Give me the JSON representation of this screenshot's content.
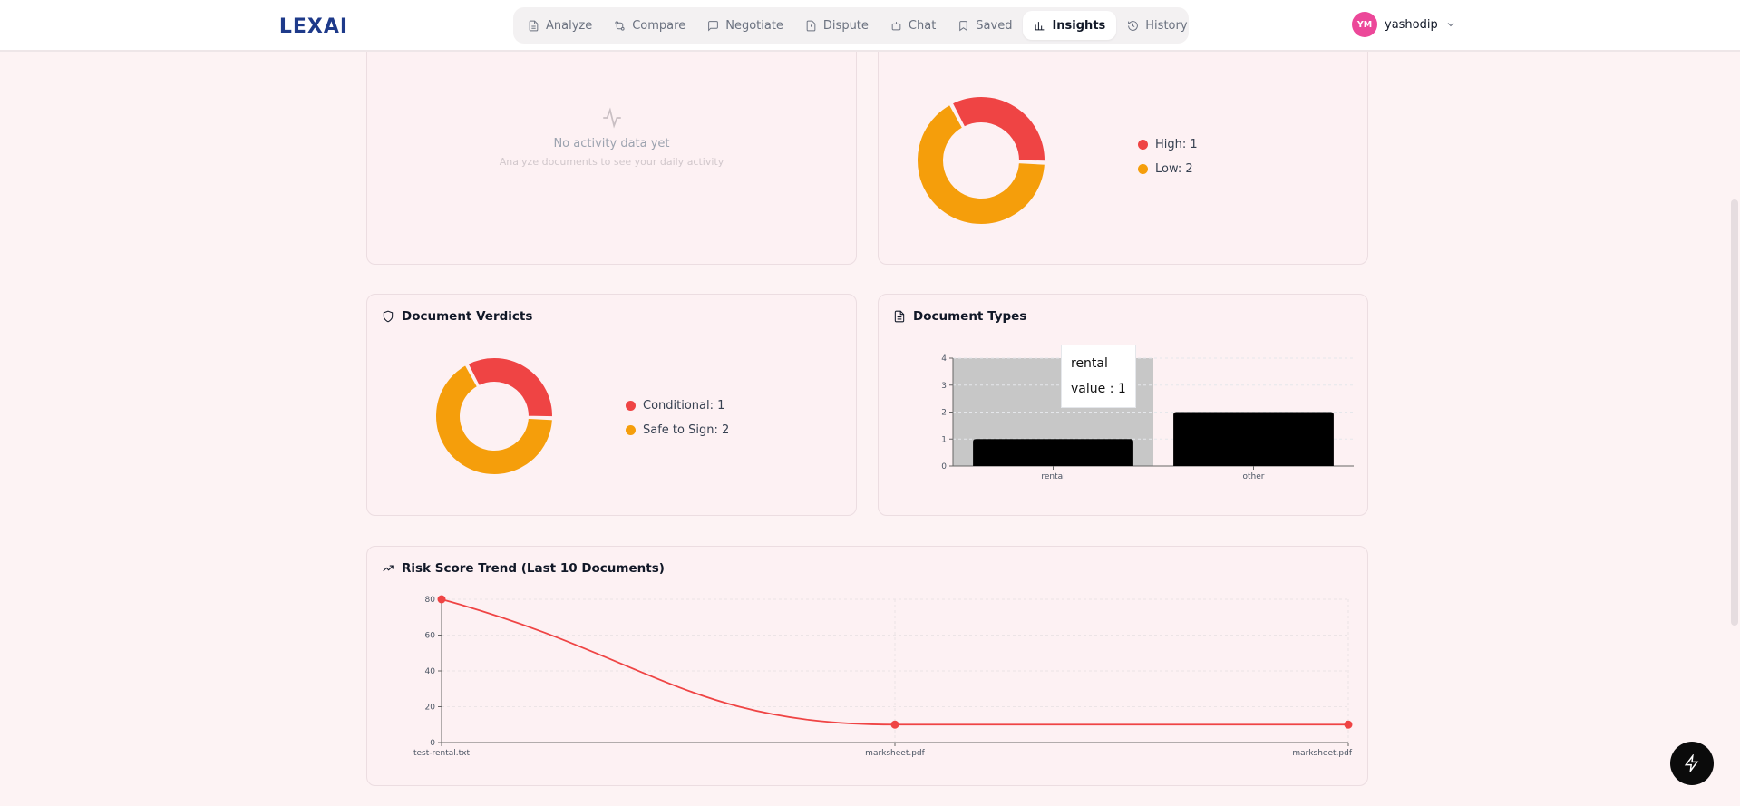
{
  "app": {
    "logo_text": "LEXAI"
  },
  "nav": {
    "items": [
      {
        "label": "Analyze",
        "icon": "file-text-icon"
      },
      {
        "label": "Compare",
        "icon": "git-compare-icon"
      },
      {
        "label": "Negotiate",
        "icon": "message-square-icon"
      },
      {
        "label": "Dispute",
        "icon": "file-warning-icon"
      },
      {
        "label": "Chat",
        "icon": "bot-icon"
      },
      {
        "label": "Saved",
        "icon": "bookmark-icon"
      },
      {
        "label": "Insights",
        "icon": "bar-chart-icon",
        "active": true
      },
      {
        "label": "History",
        "icon": "history-icon"
      }
    ]
  },
  "user": {
    "initials": "YM",
    "name": "yashodip",
    "avatar_color": "#ec4899"
  },
  "activity_card": {
    "empty_message": "No activity data yet",
    "empty_sub": "Analyze documents to see your daily activity"
  },
  "risk_card": {
    "legend": [
      {
        "label": "High: 1",
        "color": "#ef4444"
      },
      {
        "label": "Low: 2",
        "color": "#f59e0b"
      }
    ]
  },
  "verdicts_card": {
    "title": "Document Verdicts",
    "legend": [
      {
        "label": "Conditional: 1",
        "color": "#ef4444"
      },
      {
        "label": "Safe to Sign: 2",
        "color": "#f59e0b"
      }
    ]
  },
  "types_card": {
    "title": "Document Types",
    "tooltip": {
      "name": "rental",
      "value_text": "value : 1"
    }
  },
  "trend_card": {
    "title": "Risk Score Trend (Last 10 Documents)"
  },
  "chart_data": [
    {
      "type": "pie",
      "variant": "donut",
      "labels": [
        "High",
        "Low"
      ],
      "values": [
        1,
        2
      ],
      "colors": [
        "#ef4444",
        "#f59e0b"
      ]
    },
    {
      "type": "pie",
      "variant": "donut",
      "title": "Document Verdicts",
      "labels": [
        "Conditional",
        "Safe to Sign"
      ],
      "values": [
        1,
        2
      ],
      "colors": [
        "#ef4444",
        "#f59e0b"
      ]
    },
    {
      "type": "bar",
      "title": "Document Types",
      "categories": [
        "rental",
        "other"
      ],
      "values": [
        1,
        2
      ],
      "ylim": [
        0,
        4
      ],
      "yticks": [
        0,
        1,
        2,
        3,
        4
      ],
      "color": "#000000",
      "highlighted_category": "rental"
    },
    {
      "type": "line",
      "title": "Risk Score Trend (Last 10 Documents)",
      "x": [
        "test-rental.txt",
        "marksheet.pdf",
        "marksheet.pdf"
      ],
      "y": [
        80,
        10,
        10
      ],
      "ylim": [
        0,
        80
      ],
      "yticks": [
        0,
        20,
        40,
        60,
        80
      ],
      "color": "#ef4444",
      "grid": true
    }
  ]
}
